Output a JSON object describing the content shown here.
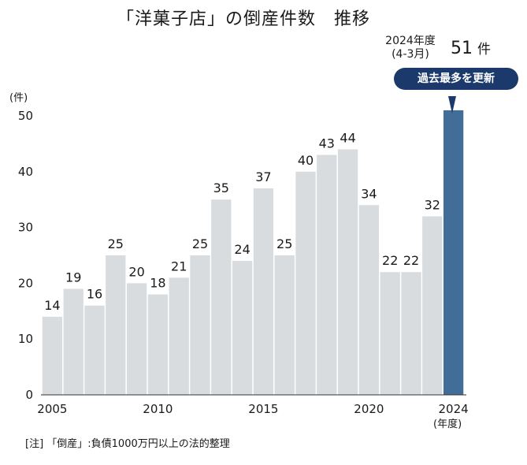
{
  "title": "「洋菓子店」の倒産件数　推移",
  "callout": {
    "period_year": "2024年度",
    "period_months": "(4-3月)",
    "value": "51",
    "value_unit": "件",
    "badge": "過去最多を更新"
  },
  "footnote": "[注] 「倒産」:負債1000万円以上の法的整理",
  "colors": {
    "bar": "#d9dcdf",
    "highlight": "#436d99",
    "badge": "#1b3a6b"
  },
  "chart_data": {
    "type": "bar",
    "title": "「洋菓子店」の倒産件数　推移",
    "ylabel": "(件)",
    "xlabel": "(年度)",
    "ylim": [
      0,
      50
    ],
    "yticks": [
      0,
      10,
      20,
      30,
      40,
      50
    ],
    "xtick_labels": [
      "2005",
      "2010",
      "2015",
      "2020",
      "2024"
    ],
    "categories": [
      "2005",
      "2006",
      "2007",
      "2008",
      "2009",
      "2010",
      "2011",
      "2012",
      "2013",
      "2014",
      "2015",
      "2016",
      "2017",
      "2018",
      "2019",
      "2020",
      "2021",
      "2022",
      "2023",
      "2024"
    ],
    "values": [
      14,
      19,
      16,
      25,
      20,
      18,
      21,
      25,
      35,
      24,
      37,
      25,
      40,
      43,
      44,
      34,
      22,
      22,
      32,
      51
    ],
    "data_labels": [
      "14",
      "19",
      "16",
      "25",
      "20",
      "18",
      "21",
      "25",
      "35",
      "24",
      "37",
      "25",
      "40",
      "43",
      "44",
      "34",
      "22",
      "22",
      "32",
      ""
    ],
    "highlight_category": "2024",
    "grid": false
  }
}
